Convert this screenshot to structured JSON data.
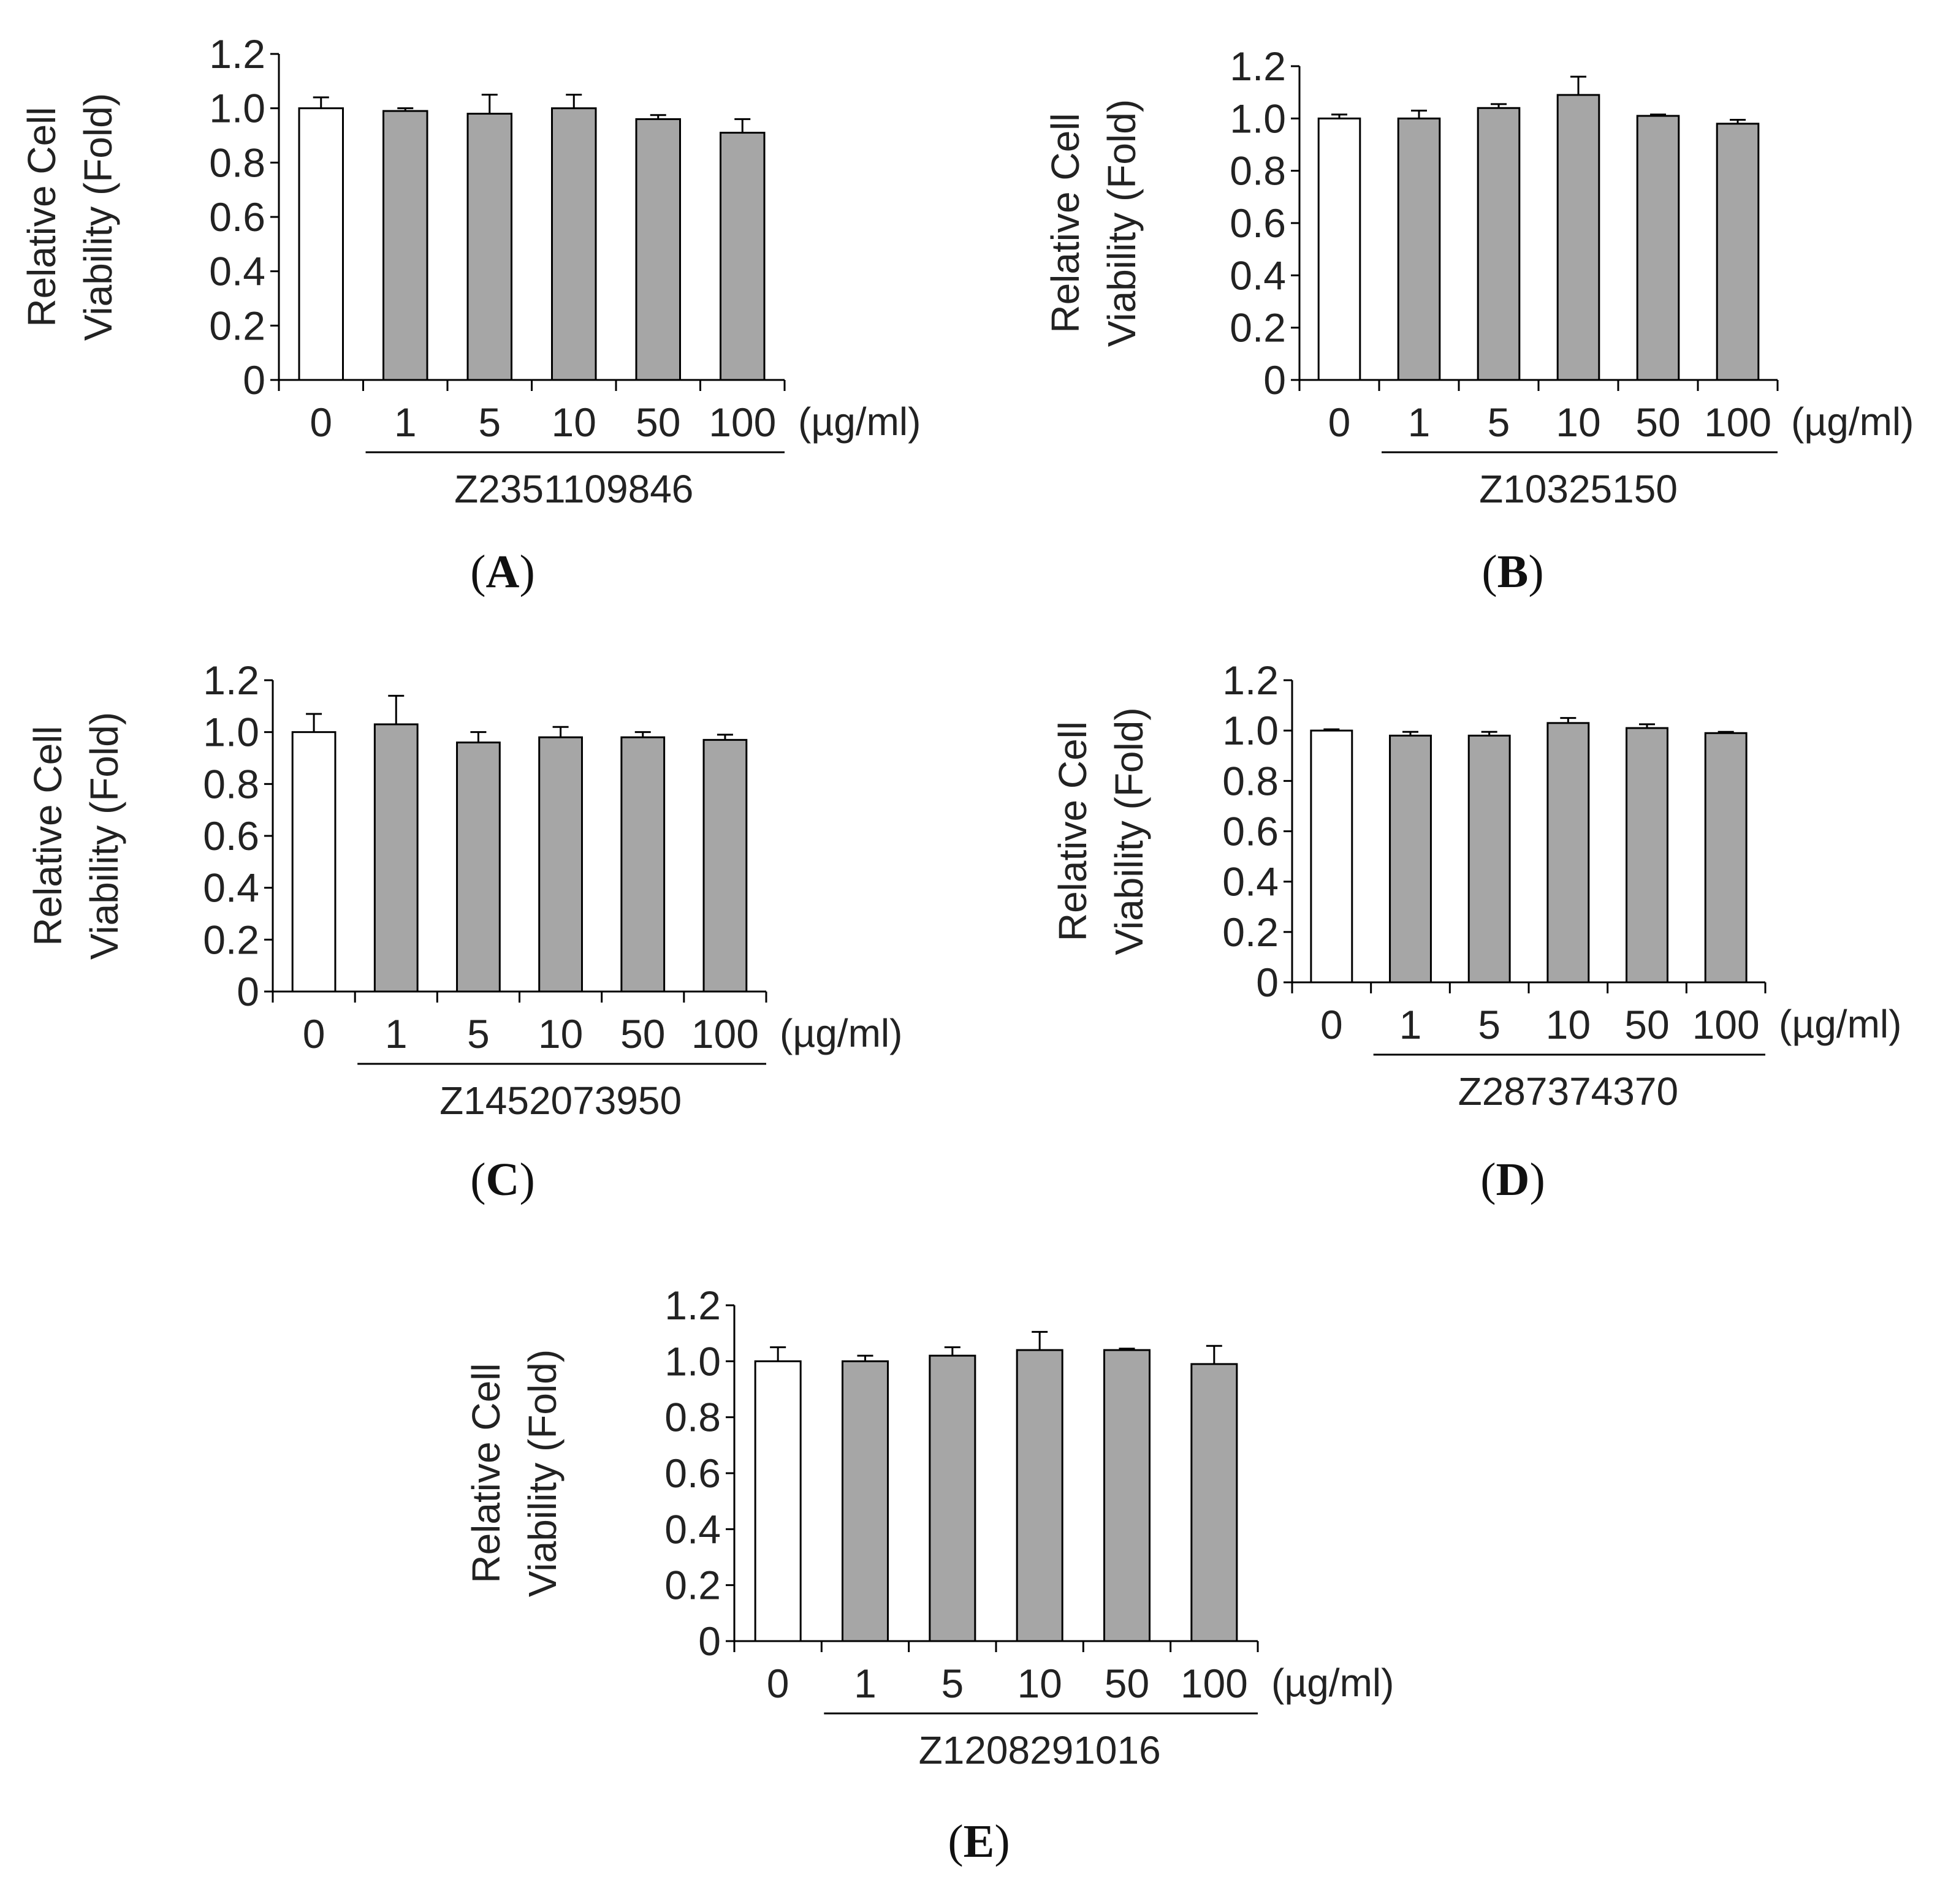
{
  "chart_data": [
    {
      "type": "bar",
      "panel": "A",
      "ylabel_lines": [
        "Relative Cell",
        "Viability (Fold)"
      ],
      "ylim": [
        0,
        1.2
      ],
      "yticks": [
        "0",
        "0.2",
        "0.4",
        "0.6",
        "0.8",
        "1.0",
        "1.2"
      ],
      "categories": [
        "0",
        "1",
        "5",
        "10",
        "50",
        "100"
      ],
      "unit": "(µg/ml)",
      "compound": "Z2351109846",
      "values": [
        1.0,
        0.99,
        0.98,
        1.0,
        0.96,
        0.91
      ],
      "errors": [
        0.04,
        0.01,
        0.07,
        0.05,
        0.015,
        0.05
      ],
      "colors": [
        "#ffffff",
        "#a6a6a6",
        "#a6a6a6",
        "#a6a6a6",
        "#a6a6a6",
        "#a6a6a6"
      ]
    },
    {
      "type": "bar",
      "panel": "B",
      "ylabel_lines": [
        "Relative Cell",
        "Viability (Fold)"
      ],
      "ylim": [
        0,
        1.2
      ],
      "yticks": [
        "0",
        "0.2",
        "0.4",
        "0.6",
        "0.8",
        "1.0",
        "1.2"
      ],
      "categories": [
        "0",
        "1",
        "5",
        "10",
        "50",
        "100"
      ],
      "unit": "(µg/ml)",
      "compound": "Z10325150",
      "values": [
        1.0,
        1.0,
        1.04,
        1.09,
        1.01,
        0.98
      ],
      "errors": [
        0.015,
        0.03,
        0.015,
        0.07,
        0.005,
        0.015
      ],
      "colors": [
        "#ffffff",
        "#a6a6a6",
        "#a6a6a6",
        "#a6a6a6",
        "#a6a6a6",
        "#a6a6a6"
      ]
    },
    {
      "type": "bar",
      "panel": "C",
      "ylabel_lines": [
        "Relative Cell",
        "Viability (Fold)"
      ],
      "ylim": [
        0,
        1.2
      ],
      "yticks": [
        "0",
        "0.2",
        "0.4",
        "0.6",
        "0.8",
        "1.0",
        "1.2"
      ],
      "categories": [
        "0",
        "1",
        "5",
        "10",
        "50",
        "100"
      ],
      "unit": "(µg/ml)",
      "compound": "Z1452073950",
      "values": [
        1.0,
        1.03,
        0.96,
        0.98,
        0.98,
        0.97
      ],
      "errors": [
        0.07,
        0.11,
        0.04,
        0.04,
        0.02,
        0.02
      ],
      "colors": [
        "#ffffff",
        "#a6a6a6",
        "#a6a6a6",
        "#a6a6a6",
        "#a6a6a6",
        "#a6a6a6"
      ]
    },
    {
      "type": "bar",
      "panel": "D",
      "ylabel_lines": [
        "Relative Cell",
        "Viability (Fold)"
      ],
      "ylim": [
        0,
        1.2
      ],
      "yticks": [
        "0",
        "0.2",
        "0.4",
        "0.6",
        "0.8",
        "1.0",
        "1.2"
      ],
      "categories": [
        "0",
        "1",
        "5",
        "10",
        "50",
        "100"
      ],
      "unit": "(µg/ml)",
      "compound": "Z287374370",
      "values": [
        1.0,
        0.98,
        0.98,
        1.03,
        1.01,
        0.99
      ],
      "errors": [
        0.005,
        0.015,
        0.015,
        0.02,
        0.015,
        0.005
      ],
      "colors": [
        "#ffffff",
        "#a6a6a6",
        "#a6a6a6",
        "#a6a6a6",
        "#a6a6a6",
        "#a6a6a6"
      ]
    },
    {
      "type": "bar",
      "panel": "E",
      "ylabel_lines": [
        "Relative Cell",
        "Viability (Fold)"
      ],
      "ylim": [
        0,
        1.2
      ],
      "yticks": [
        "0",
        "0.2",
        "0.4",
        "0.6",
        "0.8",
        "1.0",
        "1.2"
      ],
      "categories": [
        "0",
        "1",
        "5",
        "10",
        "50",
        "100"
      ],
      "unit": "(µg/ml)",
      "compound": "Z1208291016",
      "values": [
        1.0,
        1.0,
        1.02,
        1.04,
        1.04,
        0.99
      ],
      "errors": [
        0.05,
        0.02,
        0.03,
        0.065,
        0.005,
        0.065
      ],
      "colors": [
        "#ffffff",
        "#a6a6a6",
        "#a6a6a6",
        "#a6a6a6",
        "#a6a6a6",
        "#a6a6a6"
      ]
    }
  ]
}
